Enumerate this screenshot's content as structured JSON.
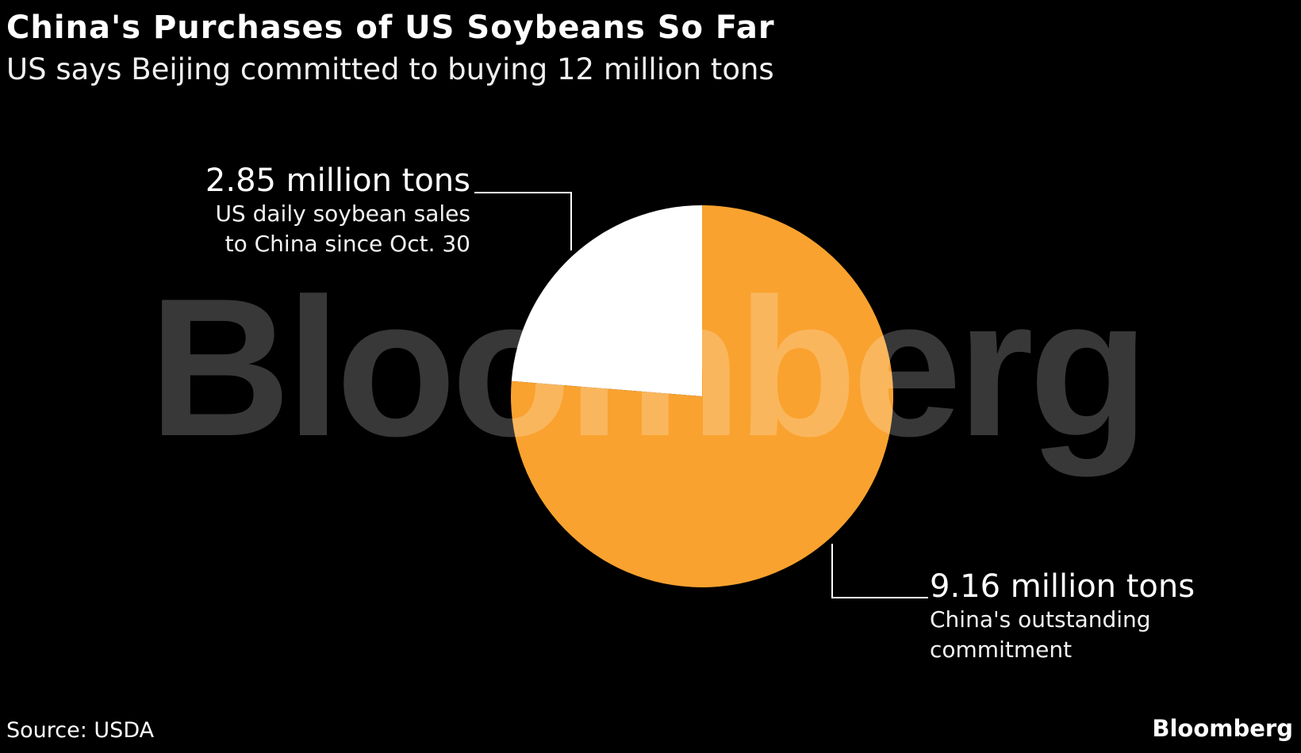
{
  "chart_data": {
    "type": "pie",
    "title": "China's Purchases of US Soybeans So Far",
    "subtitle": "US says Beijing committed to buying 12 million tons",
    "categories": [
      "US daily soybean sales to China since Oct. 30",
      "China's outstanding commitment"
    ],
    "values": [
      2.85,
      9.16
    ],
    "value_labels": [
      "2.85 million tons",
      "9.16 million tons"
    ],
    "colors": [
      "#ffffff",
      "#f9a22f"
    ],
    "source": "Source: USDA",
    "watermark": "Bloomberg",
    "logo": "Bloomberg"
  }
}
